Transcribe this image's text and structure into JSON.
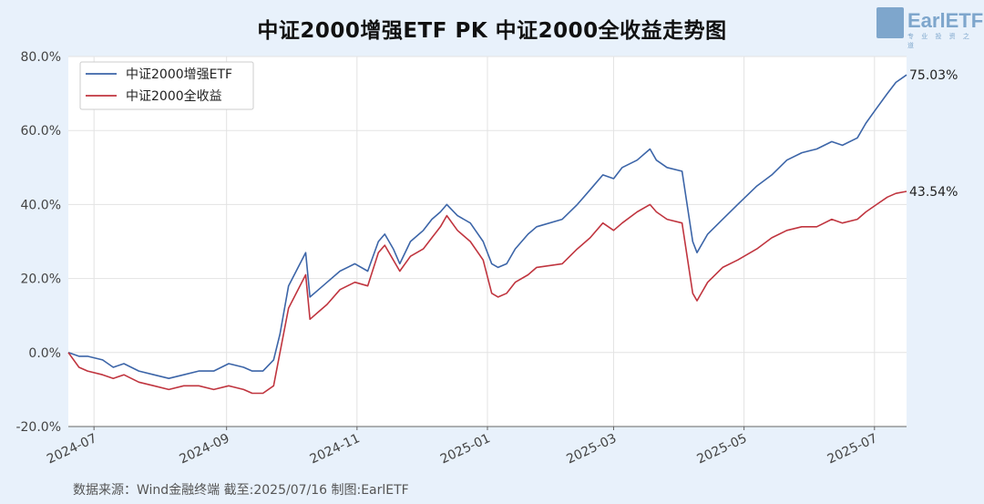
{
  "header": {
    "title": "中证2000增强ETF PK 中证2000全收益走势图"
  },
  "logo": {
    "text": "EarlETF",
    "sub": "专 业 投 资 之 道"
  },
  "footer": {
    "source": "数据来源：Wind金融终端 截至:2025/07/16 制图:EarlETF"
  },
  "colors": {
    "series1": "#3c65a8",
    "series2": "#c0353f",
    "background": "#e8f1fb",
    "plot_bg": "#ffffff",
    "grid": "#e3e3e3"
  },
  "chart_data": {
    "type": "line",
    "title": "中证2000增强ETF PK 中证2000全收益走势图",
    "y_ticks": [
      "80.0%",
      "60.0%",
      "40.0%",
      "20.0%",
      "0.0%",
      "-20.0%"
    ],
    "ylim": [
      -20,
      80
    ],
    "x_ticks": [
      "2024-07",
      "2024-09",
      "2024-11",
      "2025-01",
      "2025-03",
      "2025-05",
      "2025-07"
    ],
    "x_tick_dates": [
      "2024-07-01",
      "2024-09-01",
      "2024-11-01",
      "2025-01-01",
      "2025-03-01",
      "2025-05-01",
      "2025-07-01"
    ],
    "xlim": [
      "2024-06-19",
      "2025-07-16"
    ],
    "legend_position": "top-left",
    "grid": true,
    "series": [
      {
        "name": "中证2000增强ETF",
        "color": "#3c65a8",
        "end_label": "75.03%",
        "points": [
          [
            "2024-06-19",
            0
          ],
          [
            "2024-06-24",
            -1
          ],
          [
            "2024-06-28",
            -1
          ],
          [
            "2024-07-05",
            -2
          ],
          [
            "2024-07-10",
            -4
          ],
          [
            "2024-07-15",
            -3
          ],
          [
            "2024-07-22",
            -5
          ],
          [
            "2024-07-29",
            -6
          ],
          [
            "2024-08-05",
            -7
          ],
          [
            "2024-08-12",
            -6
          ],
          [
            "2024-08-19",
            -5
          ],
          [
            "2024-08-26",
            -5
          ],
          [
            "2024-09-02",
            -3
          ],
          [
            "2024-09-09",
            -4
          ],
          [
            "2024-09-13",
            -5
          ],
          [
            "2024-09-18",
            -5
          ],
          [
            "2024-09-23",
            -2
          ],
          [
            "2024-09-26",
            5
          ],
          [
            "2024-09-30",
            18
          ],
          [
            "2024-10-08",
            27
          ],
          [
            "2024-10-10",
            15
          ],
          [
            "2024-10-14",
            17
          ],
          [
            "2024-10-18",
            19
          ],
          [
            "2024-10-24",
            22
          ],
          [
            "2024-10-31",
            24
          ],
          [
            "2024-11-06",
            22
          ],
          [
            "2024-11-11",
            30
          ],
          [
            "2024-11-14",
            32
          ],
          [
            "2024-11-18",
            28
          ],
          [
            "2024-11-21",
            24
          ],
          [
            "2024-11-26",
            30
          ],
          [
            "2024-12-02",
            33
          ],
          [
            "2024-12-06",
            36
          ],
          [
            "2024-12-10",
            38
          ],
          [
            "2024-12-13",
            40
          ],
          [
            "2024-12-18",
            37
          ],
          [
            "2024-12-24",
            35
          ],
          [
            "2024-12-30",
            30
          ],
          [
            "2025-01-03",
            24
          ],
          [
            "2025-01-06",
            23
          ],
          [
            "2025-01-10",
            24
          ],
          [
            "2025-01-14",
            28
          ],
          [
            "2025-01-20",
            32
          ],
          [
            "2025-01-24",
            34
          ],
          [
            "2025-02-05",
            36
          ],
          [
            "2025-02-12",
            40
          ],
          [
            "2025-02-18",
            44
          ],
          [
            "2025-02-24",
            48
          ],
          [
            "2025-03-01",
            47
          ],
          [
            "2025-03-05",
            50
          ],
          [
            "2025-03-12",
            52
          ],
          [
            "2025-03-18",
            55
          ],
          [
            "2025-03-21",
            52
          ],
          [
            "2025-03-26",
            50
          ],
          [
            "2025-04-02",
            49
          ],
          [
            "2025-04-07",
            30
          ],
          [
            "2025-04-09",
            27
          ],
          [
            "2025-04-14",
            32
          ],
          [
            "2025-04-21",
            36
          ],
          [
            "2025-04-28",
            40
          ],
          [
            "2025-05-07",
            45
          ],
          [
            "2025-05-14",
            48
          ],
          [
            "2025-05-21",
            52
          ],
          [
            "2025-05-28",
            54
          ],
          [
            "2025-06-04",
            55
          ],
          [
            "2025-06-11",
            57
          ],
          [
            "2025-06-16",
            56
          ],
          [
            "2025-06-23",
            58
          ],
          [
            "2025-06-27",
            62
          ],
          [
            "2025-07-02",
            66
          ],
          [
            "2025-07-07",
            70
          ],
          [
            "2025-07-11",
            73
          ],
          [
            "2025-07-16",
            75.03
          ]
        ]
      },
      {
        "name": "中证2000全收益",
        "color": "#c0353f",
        "end_label": "43.54%",
        "points": [
          [
            "2024-06-19",
            0
          ],
          [
            "2024-06-24",
            -4
          ],
          [
            "2024-06-28",
            -5
          ],
          [
            "2024-07-05",
            -6
          ],
          [
            "2024-07-10",
            -7
          ],
          [
            "2024-07-15",
            -6
          ],
          [
            "2024-07-22",
            -8
          ],
          [
            "2024-07-29",
            -9
          ],
          [
            "2024-08-05",
            -10
          ],
          [
            "2024-08-12",
            -9
          ],
          [
            "2024-08-19",
            -9
          ],
          [
            "2024-08-26",
            -10
          ],
          [
            "2024-09-02",
            -9
          ],
          [
            "2024-09-09",
            -10
          ],
          [
            "2024-09-13",
            -11
          ],
          [
            "2024-09-18",
            -11
          ],
          [
            "2024-09-23",
            -9
          ],
          [
            "2024-09-26",
            0
          ],
          [
            "2024-09-30",
            12
          ],
          [
            "2024-10-08",
            21
          ],
          [
            "2024-10-10",
            9
          ],
          [
            "2024-10-14",
            11
          ],
          [
            "2024-10-18",
            13
          ],
          [
            "2024-10-24",
            17
          ],
          [
            "2024-10-31",
            19
          ],
          [
            "2024-11-06",
            18
          ],
          [
            "2024-11-11",
            27
          ],
          [
            "2024-11-14",
            29
          ],
          [
            "2024-11-18",
            25
          ],
          [
            "2024-11-21",
            22
          ],
          [
            "2024-11-26",
            26
          ],
          [
            "2024-12-02",
            28
          ],
          [
            "2024-12-06",
            31
          ],
          [
            "2024-12-10",
            34
          ],
          [
            "2024-12-13",
            37
          ],
          [
            "2024-12-18",
            33
          ],
          [
            "2024-12-24",
            30
          ],
          [
            "2024-12-30",
            25
          ],
          [
            "2025-01-03",
            16
          ],
          [
            "2025-01-06",
            15
          ],
          [
            "2025-01-10",
            16
          ],
          [
            "2025-01-14",
            19
          ],
          [
            "2025-01-20",
            21
          ],
          [
            "2025-01-24",
            23
          ],
          [
            "2025-02-05",
            24
          ],
          [
            "2025-02-12",
            28
          ],
          [
            "2025-02-18",
            31
          ],
          [
            "2025-02-24",
            35
          ],
          [
            "2025-03-01",
            33
          ],
          [
            "2025-03-05",
            35
          ],
          [
            "2025-03-12",
            38
          ],
          [
            "2025-03-18",
            40
          ],
          [
            "2025-03-21",
            38
          ],
          [
            "2025-03-26",
            36
          ],
          [
            "2025-04-02",
            35
          ],
          [
            "2025-04-07",
            16
          ],
          [
            "2025-04-09",
            14
          ],
          [
            "2025-04-14",
            19
          ],
          [
            "2025-04-21",
            23
          ],
          [
            "2025-04-28",
            25
          ],
          [
            "2025-05-07",
            28
          ],
          [
            "2025-05-14",
            31
          ],
          [
            "2025-05-21",
            33
          ],
          [
            "2025-05-28",
            34
          ],
          [
            "2025-06-04",
            34
          ],
          [
            "2025-06-11",
            36
          ],
          [
            "2025-06-16",
            35
          ],
          [
            "2025-06-23",
            36
          ],
          [
            "2025-06-27",
            38
          ],
          [
            "2025-07-02",
            40
          ],
          [
            "2025-07-07",
            42
          ],
          [
            "2025-07-11",
            43
          ],
          [
            "2025-07-16",
            43.54
          ]
        ]
      }
    ]
  }
}
